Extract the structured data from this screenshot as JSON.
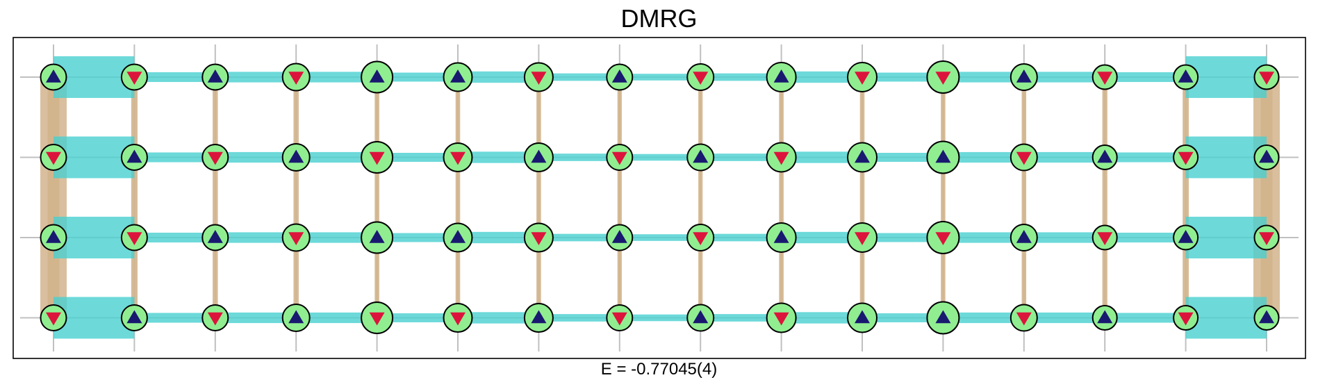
{
  "title": "DMRG",
  "energy_label": "E = -0.77045(4)",
  "colors": {
    "site_fill": "#90ee90",
    "spin_up": "#191970",
    "spin_down": "#dc143c",
    "horizontal_bond": "#48cfcf",
    "vertical_bond": "#d2b48c",
    "grid": "#c0c0c0"
  },
  "lattice": {
    "columns": 16,
    "rows": 4,
    "spins": [
      [
        "up",
        "down",
        "up",
        "down",
        "up",
        "up",
        "down",
        "up",
        "down",
        "up",
        "down",
        "down",
        "up",
        "down",
        "up",
        "down"
      ],
      [
        "down",
        "up",
        "down",
        "up",
        "down",
        "down",
        "up",
        "down",
        "up",
        "down",
        "up",
        "up",
        "down",
        "up",
        "down",
        "up"
      ],
      [
        "up",
        "down",
        "up",
        "down",
        "up",
        "up",
        "down",
        "up",
        "down",
        "up",
        "down",
        "down",
        "up",
        "down",
        "up",
        "down"
      ],
      [
        "down",
        "up",
        "down",
        "up",
        "down",
        "down",
        "up",
        "down",
        "up",
        "down",
        "up",
        "up",
        "down",
        "up",
        "down",
        "up"
      ]
    ],
    "site_magnitude": [
      [
        0.55,
        0.55,
        0.55,
        0.65,
        0.95,
        0.75,
        0.75,
        0.55,
        0.6,
        0.8,
        0.8,
        1.0,
        0.6,
        0.45,
        0.45,
        0.45
      ],
      [
        0.55,
        0.55,
        0.55,
        0.65,
        0.95,
        0.75,
        0.75,
        0.55,
        0.6,
        0.8,
        0.8,
        1.0,
        0.6,
        0.45,
        0.45,
        0.45
      ],
      [
        0.55,
        0.55,
        0.55,
        0.65,
        0.95,
        0.75,
        0.75,
        0.55,
        0.6,
        0.8,
        0.8,
        1.0,
        0.6,
        0.45,
        0.45,
        0.45
      ],
      [
        0.55,
        0.55,
        0.55,
        0.65,
        0.95,
        0.75,
        0.75,
        0.55,
        0.6,
        0.8,
        0.8,
        1.0,
        0.6,
        0.45,
        0.45,
        0.45
      ]
    ],
    "horizontal_bond_strength": [
      [
        1.0,
        0.18,
        0.2,
        0.2,
        0.16,
        0.22,
        0.12,
        0.1,
        0.12,
        0.22,
        0.16,
        0.2,
        0.2,
        0.18,
        1.0
      ],
      [
        1.0,
        0.18,
        0.2,
        0.2,
        0.16,
        0.22,
        0.12,
        0.1,
        0.12,
        0.22,
        0.16,
        0.2,
        0.2,
        0.18,
        1.0
      ],
      [
        1.0,
        0.18,
        0.2,
        0.2,
        0.16,
        0.22,
        0.12,
        0.1,
        0.12,
        0.22,
        0.16,
        0.2,
        0.2,
        0.18,
        1.0
      ],
      [
        1.0,
        0.18,
        0.2,
        0.2,
        0.16,
        0.22,
        0.12,
        0.1,
        0.12,
        0.22,
        0.16,
        0.2,
        0.2,
        0.18,
        1.0
      ]
    ],
    "vertical_bond_strength": [
      [
        0.8,
        0.32,
        0.22,
        0.22,
        0.16,
        0.16,
        0.16,
        0.14,
        0.14,
        0.16,
        0.16,
        0.16,
        0.16,
        0.2,
        0.3,
        0.8
      ],
      [
        0.8,
        0.32,
        0.22,
        0.22,
        0.16,
        0.16,
        0.16,
        0.14,
        0.14,
        0.16,
        0.16,
        0.16,
        0.16,
        0.2,
        0.3,
        0.8
      ],
      [
        0.8,
        0.32,
        0.22,
        0.22,
        0.16,
        0.16,
        0.16,
        0.14,
        0.14,
        0.16,
        0.16,
        0.16,
        0.16,
        0.2,
        0.3,
        0.8
      ]
    ],
    "periodic_vertical_bond_strength": [
      1.0,
      0,
      0,
      0,
      0,
      0,
      0,
      0,
      0,
      0,
      0,
      0,
      0,
      0,
      0,
      1.0
    ]
  }
}
